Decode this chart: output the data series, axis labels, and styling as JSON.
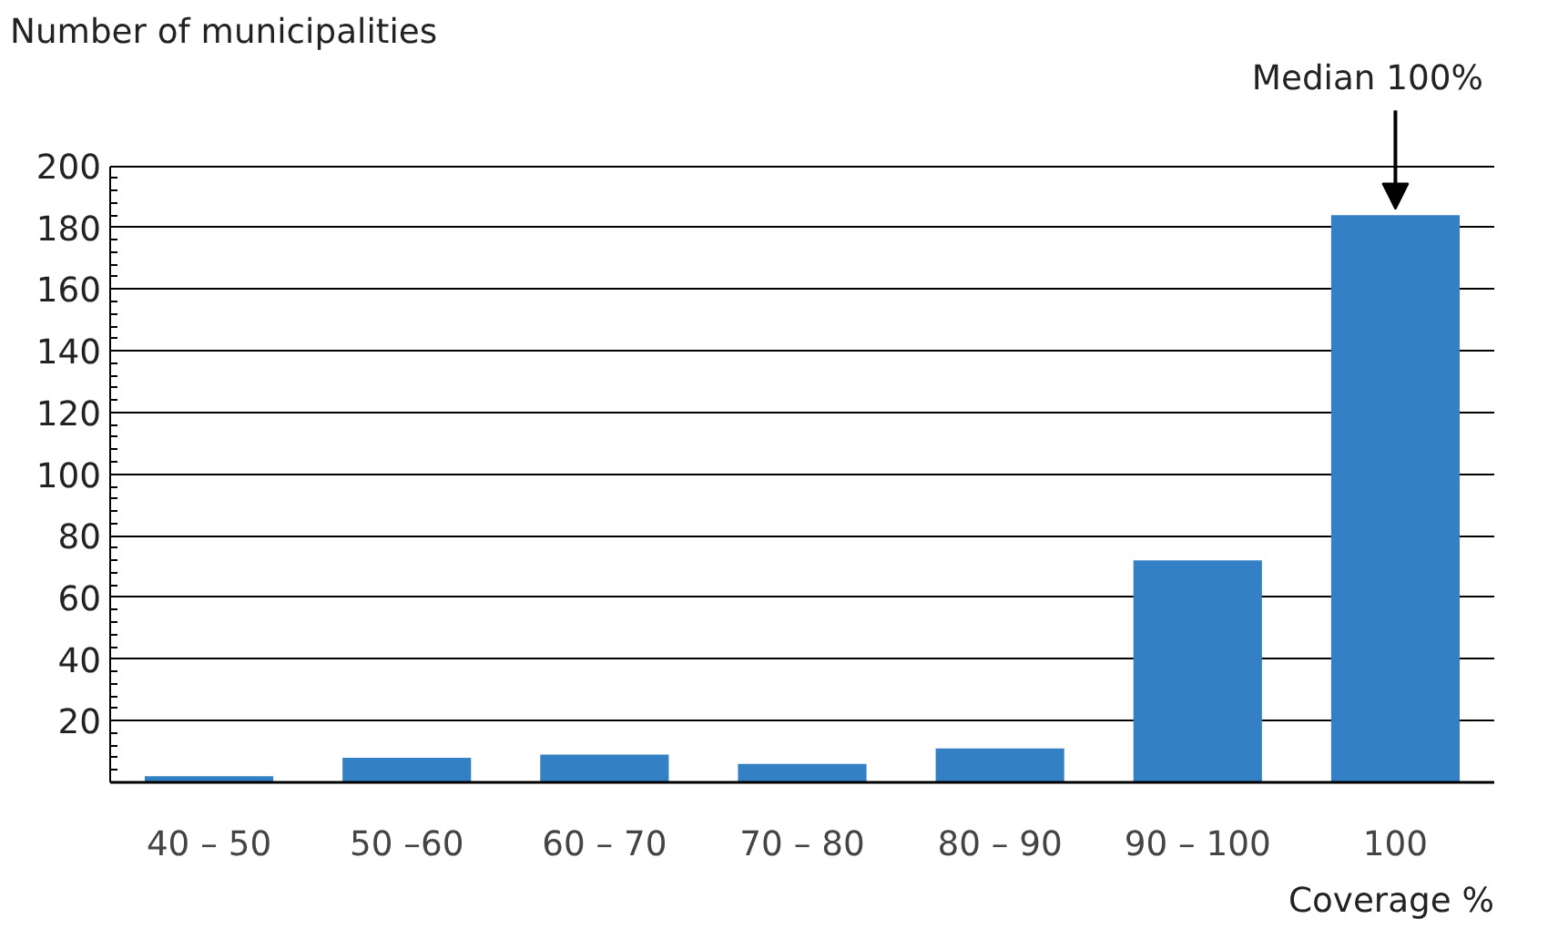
{
  "chart_data": {
    "type": "bar",
    "ylabel": "Number of municipalities",
    "xlabel": "Coverage %",
    "categories": [
      "40 – 50",
      "50 –60",
      "60 – 70",
      "70 – 80",
      "80 – 90",
      "90 – 100",
      "100"
    ],
    "values": [
      2,
      8,
      9,
      6,
      11,
      72,
      184
    ],
    "color": "#3380c4",
    "ylim": [
      0,
      200
    ],
    "yticks": [
      20,
      40,
      60,
      80,
      100,
      120,
      140,
      160,
      180,
      200
    ],
    "grid": "y",
    "annotations": [
      {
        "text": "Median 100%",
        "x": "100",
        "y": 184
      }
    ]
  }
}
